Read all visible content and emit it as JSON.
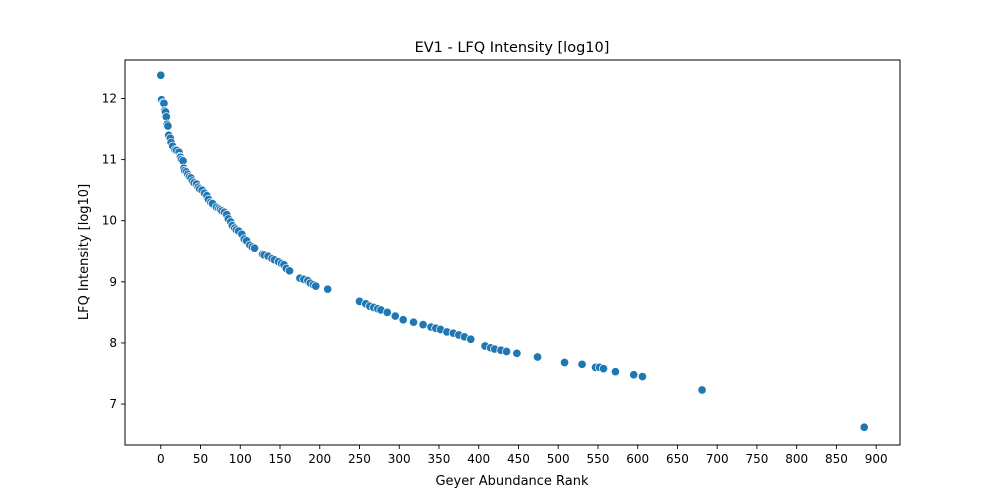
{
  "chart_data": {
    "type": "scatter",
    "title": "EV1 - LFQ Intensity [log10]",
    "xlabel": "Geyer Abundance Rank",
    "ylabel": "LFQ Intensity [log10]",
    "xlim": [
      -45,
      930
    ],
    "ylim": [
      6.33,
      12.63
    ],
    "xticks": [
      0,
      50,
      100,
      150,
      200,
      250,
      300,
      350,
      400,
      450,
      500,
      550,
      600,
      650,
      700,
      750,
      800,
      850,
      900
    ],
    "yticks": [
      7,
      8,
      9,
      10,
      11,
      12
    ],
    "grid": false,
    "legend": "none",
    "marker_color": "#1f77b4",
    "series": [
      {
        "x": [
          0,
          1,
          3,
          4,
          5,
          6,
          7,
          8,
          9,
          10,
          12,
          13,
          15,
          18,
          20,
          23,
          24,
          25,
          26,
          28,
          29,
          30,
          32,
          34,
          36,
          38,
          40,
          42,
          45,
          47,
          49,
          52,
          55,
          58,
          60,
          63,
          65,
          70,
          73,
          75,
          77,
          80,
          83,
          85,
          88,
          90,
          93,
          95,
          98,
          102,
          105,
          108,
          112,
          115,
          118,
          128,
          130,
          135,
          140,
          143,
          148,
          152,
          155,
          158,
          162,
          175,
          180,
          185,
          188,
          192,
          195,
          210,
          250,
          258,
          263,
          268,
          273,
          277,
          285,
          295,
          305,
          318,
          330,
          340,
          346,
          352,
          360,
          368,
          375,
          382,
          390,
          408,
          415,
          420,
          428,
          435,
          448,
          474,
          508,
          530,
          547,
          552,
          557,
          572,
          595,
          606,
          681,
          885
        ],
        "y": [
          12.38,
          11.98,
          11.93,
          11.92,
          11.8,
          11.78,
          11.7,
          11.58,
          11.55,
          11.4,
          11.35,
          11.28,
          11.22,
          11.16,
          11.15,
          11.12,
          11.05,
          11.04,
          11.0,
          10.98,
          10.86,
          10.82,
          10.8,
          10.76,
          10.72,
          10.7,
          10.65,
          10.62,
          10.6,
          10.55,
          10.52,
          10.5,
          10.45,
          10.41,
          10.35,
          10.3,
          10.28,
          10.22,
          10.2,
          10.18,
          10.16,
          10.14,
          10.1,
          10.03,
          9.98,
          9.92,
          9.88,
          9.85,
          9.83,
          9.78,
          9.7,
          9.67,
          9.6,
          9.57,
          9.55,
          9.45,
          9.44,
          9.42,
          9.38,
          9.36,
          9.33,
          9.3,
          9.28,
          9.22,
          9.18,
          9.06,
          9.04,
          9.02,
          8.98,
          8.95,
          8.93,
          8.88,
          8.68,
          8.64,
          8.6,
          8.58,
          8.56,
          8.54,
          8.5,
          8.44,
          8.38,
          8.34,
          8.3,
          8.26,
          8.24,
          8.22,
          8.18,
          8.16,
          8.13,
          8.1,
          8.06,
          7.95,
          7.92,
          7.9,
          7.88,
          7.86,
          7.83,
          7.77,
          7.68,
          7.65,
          7.6,
          7.6,
          7.58,
          7.53,
          7.48,
          7.45,
          7.23,
          6.62
        ]
      }
    ]
  }
}
